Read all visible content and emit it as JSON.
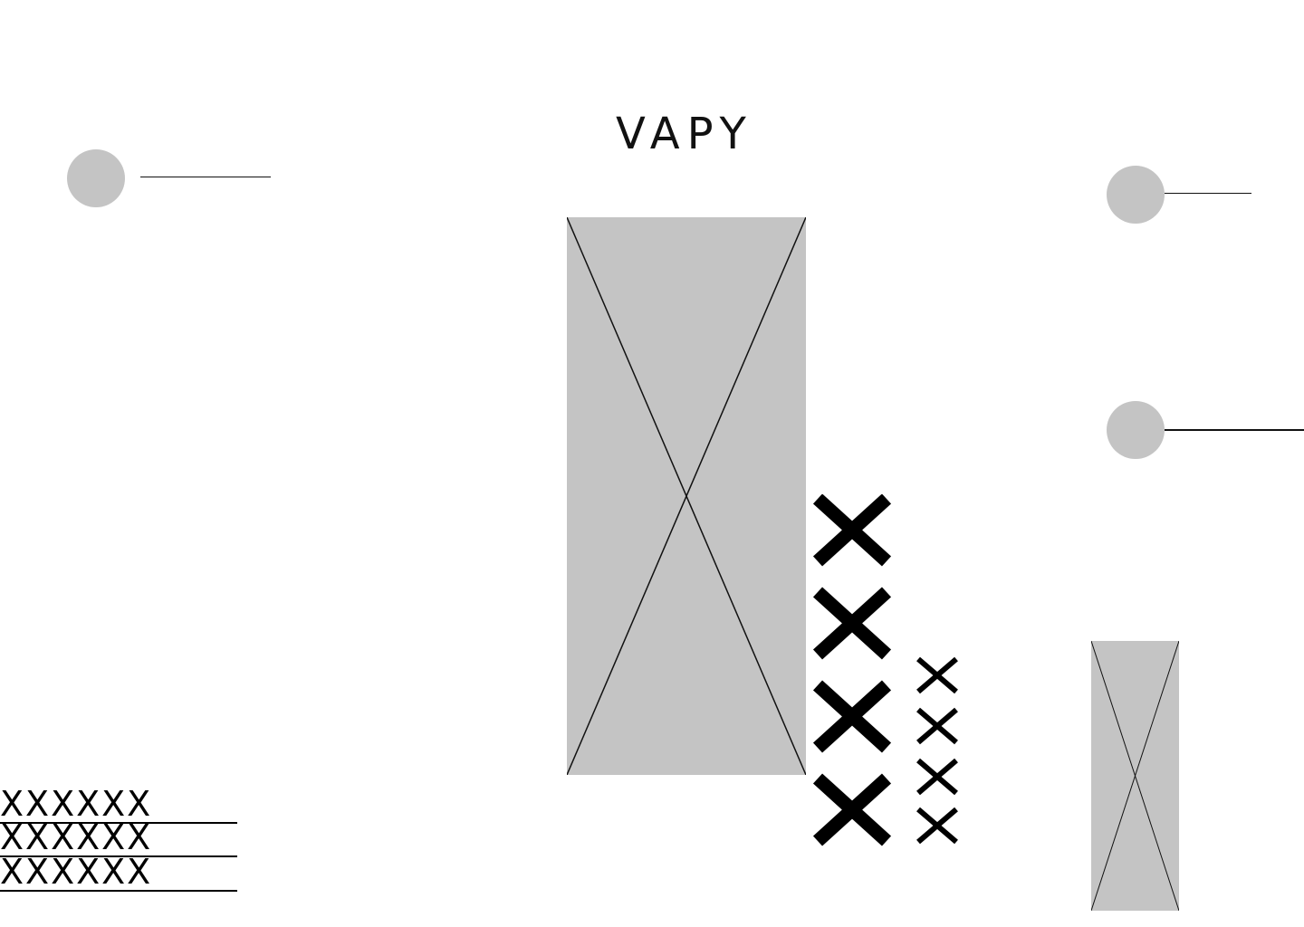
{
  "brand": {
    "title": "VAPY"
  },
  "nav": {
    "left_item": "",
    "right_top_item": "",
    "right_middle_item": ""
  },
  "placeholder_rows": [
    "XXXXXX",
    "XXXXXX",
    "XXXXXX"
  ],
  "icons": {
    "dot": "circle-icon",
    "placeholder": "image-placeholder-icon",
    "marker": "x-mark-icon"
  },
  "colors": {
    "background": "#ffffff",
    "placeholder_fill": "#c4c4c4",
    "ink": "#000000"
  }
}
